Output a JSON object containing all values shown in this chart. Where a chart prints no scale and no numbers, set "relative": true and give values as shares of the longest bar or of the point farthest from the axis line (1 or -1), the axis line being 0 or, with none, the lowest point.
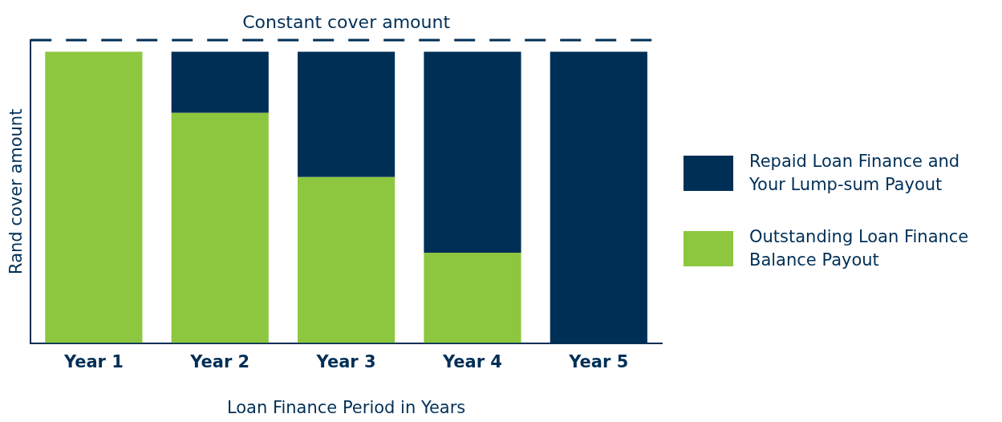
{
  "chart_data": {
    "type": "bar",
    "relative": true,
    "stacked": true,
    "xlabel": "Loan Finance Period in Years",
    "ylabel": "Rand cover amount",
    "categories": [
      "Year 1",
      "Year 2",
      "Year 3",
      "Year 4",
      "Year 5"
    ],
    "series": [
      {
        "name": "Outstanding Loan Finance Balance Payout",
        "color": "#8dc63f",
        "values": [
          1,
          0.79,
          0.57,
          0.31,
          0
        ]
      },
      {
        "name": "Repaid Loan Finance and Your Lump-sum Payout",
        "color": "#002f56",
        "values": [
          0,
          0.21,
          0.43,
          0.69,
          1
        ]
      }
    ],
    "ref_lines": [
      {
        "axis": "y",
        "value": 1.04,
        "label": "Constant cover amount",
        "color": "#002f56",
        "line_style": "dashed"
      }
    ],
    "legend": "right",
    "grid": false
  }
}
